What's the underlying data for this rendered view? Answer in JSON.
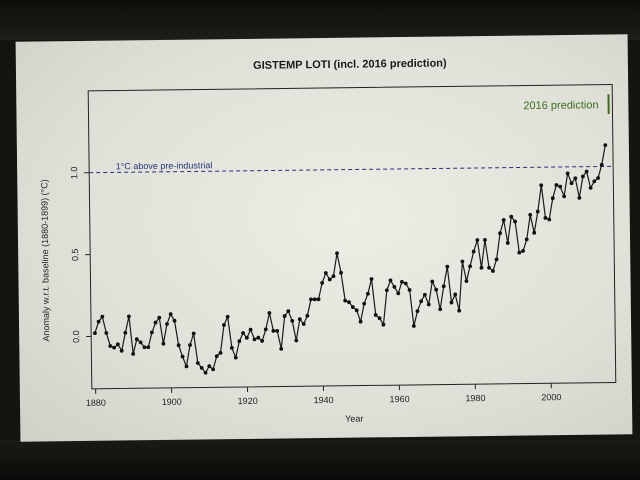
{
  "chart_data": {
    "type": "line",
    "title": "GISTEMP LOTI (incl. 2016 prediction)",
    "xlabel": "Year",
    "ylabel": "Anomaly w.r.t. baseline (1880-1899) (°C)",
    "xlim": [
      1879,
      2017
    ],
    "ylim": [
      -0.32,
      1.5
    ],
    "xticks": [
      1880,
      1900,
      1920,
      1940,
      1960,
      1980,
      2000
    ],
    "yticks": [
      0.0,
      0.5,
      1.0
    ],
    "ytick_labels": [
      "0.0",
      "0.5",
      "1.0"
    ],
    "grid": false,
    "reference_line": {
      "y": 1.0,
      "label": "1°C above pre-industrial",
      "color": "#27307a"
    },
    "prediction": {
      "x": 2016,
      "y_low": 1.32,
      "y_high": 1.44,
      "label": "2016 prediction",
      "color": "#3d6b1f"
    },
    "series": [
      {
        "color": "#1a1a1a",
        "x": [
          1880,
          1881,
          1882,
          1883,
          1884,
          1885,
          1886,
          1887,
          1888,
          1889,
          1890,
          1891,
          1892,
          1893,
          1894,
          1895,
          1896,
          1897,
          1898,
          1899,
          1900,
          1901,
          1902,
          1903,
          1904,
          1905,
          1906,
          1907,
          1908,
          1909,
          1910,
          1911,
          1912,
          1913,
          1914,
          1915,
          1916,
          1917,
          1918,
          1919,
          1920,
          1921,
          1922,
          1923,
          1924,
          1925,
          1926,
          1927,
          1928,
          1929,
          1930,
          1931,
          1932,
          1933,
          1934,
          1935,
          1936,
          1937,
          1938,
          1939,
          1940,
          1941,
          1942,
          1943,
          1944,
          1945,
          1946,
          1947,
          1948,
          1949,
          1950,
          1951,
          1952,
          1953,
          1954,
          1955,
          1956,
          1957,
          1958,
          1959,
          1960,
          1961,
          1962,
          1963,
          1964,
          1965,
          1966,
          1967,
          1968,
          1969,
          1970,
          1971,
          1972,
          1973,
          1974,
          1975,
          1976,
          1977,
          1978,
          1979,
          1980,
          1981,
          1982,
          1983,
          1984,
          1985,
          1986,
          1987,
          1988,
          1989,
          1990,
          1991,
          1992,
          1993,
          1994,
          1995,
          1996,
          1997,
          1998,
          1999,
          2000,
          2001,
          2002,
          2003,
          2004,
          2005,
          2006,
          2007,
          2008,
          2009,
          2010,
          2011,
          2012,
          2013,
          2014,
          2015
        ],
        "values": [
          0.02,
          0.09,
          0.12,
          0.02,
          -0.06,
          -0.07,
          -0.05,
          -0.09,
          0.02,
          0.12,
          -0.11,
          -0.02,
          -0.04,
          -0.07,
          -0.07,
          0.02,
          0.08,
          0.11,
          -0.05,
          0.07,
          0.13,
          0.09,
          -0.06,
          -0.13,
          -0.19,
          -0.06,
          0.01,
          -0.17,
          -0.2,
          -0.23,
          -0.19,
          -0.21,
          -0.13,
          -0.11,
          0.06,
          0.11,
          -0.08,
          -0.14,
          -0.04,
          0.01,
          -0.02,
          0.03,
          -0.03,
          -0.02,
          -0.04,
          0.03,
          0.13,
          0.02,
          0.02,
          -0.09,
          0.11,
          0.14,
          0.08,
          -0.04,
          0.09,
          0.06,
          0.11,
          0.21,
          0.21,
          0.21,
          0.31,
          0.37,
          0.33,
          0.35,
          0.49,
          0.37,
          0.2,
          0.19,
          0.16,
          0.14,
          0.07,
          0.18,
          0.24,
          0.33,
          0.11,
          0.09,
          0.05,
          0.26,
          0.32,
          0.28,
          0.24,
          0.31,
          0.3,
          0.26,
          0.04,
          0.13,
          0.19,
          0.23,
          0.17,
          0.31,
          0.26,
          0.14,
          0.28,
          0.4,
          0.18,
          0.23,
          0.13,
          0.43,
          0.31,
          0.4,
          0.49,
          0.56,
          0.39,
          0.56,
          0.39,
          0.37,
          0.44,
          0.6,
          0.68,
          0.54,
          0.7,
          0.67,
          0.48,
          0.49,
          0.56,
          0.71,
          0.6,
          0.73,
          0.89,
          0.69,
          0.68,
          0.81,
          0.89,
          0.88,
          0.82,
          0.96,
          0.9,
          0.93,
          0.81,
          0.94,
          0.97,
          0.87,
          0.91,
          0.93,
          1.01,
          1.13
        ]
      }
    ]
  }
}
